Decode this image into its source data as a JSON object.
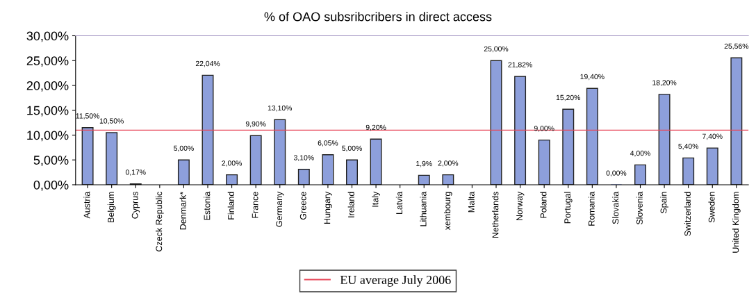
{
  "chart_data": {
    "type": "bar",
    "title": "% of OAO subsribcribers in direct access",
    "categories": [
      "Austria",
      "Belgium",
      "Cyprus",
      "Czeck Republic",
      "Denmark*",
      "Estonia",
      "Finland",
      "France",
      "Germany",
      "Greece",
      "Hungary",
      "Ireland",
      "Italy",
      "Latvia",
      "Lithuania",
      "xembourg",
      "Malta",
      "Netherlands",
      "Norway",
      "Poland",
      "Portugal",
      "Romania",
      "Slovakia",
      "Slovenia",
      "Spain",
      "Switzerland",
      "Sweden",
      "United Kingdom"
    ],
    "values": [
      11.5,
      10.5,
      0.17,
      null,
      5.0,
      22.04,
      2.0,
      9.9,
      13.1,
      3.1,
      6.05,
      5.0,
      9.2,
      null,
      1.9,
      2.0,
      null,
      25.0,
      21.82,
      9.0,
      15.2,
      19.4,
      0.0,
      4.0,
      18.2,
      5.4,
      7.4,
      25.56
    ],
    "value_labels": [
      "11,50%",
      "10,50%",
      "0,17%",
      null,
      "5,00%",
      "22,04%",
      "2,00%",
      "9,90%",
      "13,10%",
      "3,10%",
      "6,05%",
      "5,00%",
      "9,20%",
      null,
      "1,9%",
      "2,00%",
      null,
      "25,00%",
      "21,82%",
      "9,00%",
      "15,20%",
      "19,40%",
      "0,00%",
      "4,00%",
      "18,20%",
      "5,40%",
      "7,40%",
      "25,56%"
    ],
    "color": "#8d9fdb",
    "ylim": [
      0,
      30
    ],
    "yticks": [
      {
        "value": 0,
        "label": "0,00%"
      },
      {
        "value": 5,
        "label": "5,00%"
      },
      {
        "value": 10,
        "label": "10,00%"
      },
      {
        "value": 15,
        "label": "15,00%"
      },
      {
        "value": 20,
        "label": "20,00%"
      },
      {
        "value": 25,
        "label": "25,00%"
      },
      {
        "value": 30,
        "label": "30,00%"
      }
    ],
    "ref_lines": [
      {
        "axis": "y",
        "value": 11.0,
        "label": "EU average July 2006",
        "color": "#e8485a"
      }
    ],
    "grid": false,
    "legend": "bottom"
  }
}
